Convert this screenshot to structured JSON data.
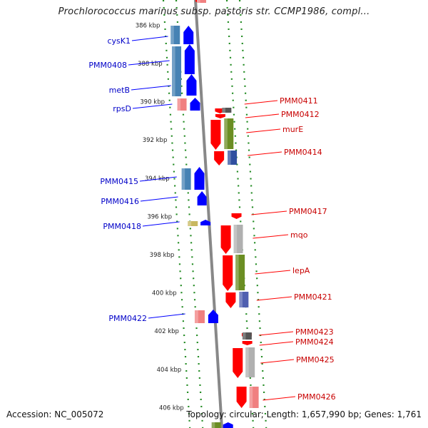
{
  "title": "Prochlorococcus marinus subsp. pastoris str. CCMP1986, compl...",
  "footer": {
    "accession": "Accession: NC_005072",
    "topology": "Topology: circular; Length: 1,657,990 bp; Genes: 1,761"
  },
  "colors": {
    "forward_arrow": "#0000ff",
    "reverse_arrow": "#ff0000",
    "cog_steelblue": "#4682b4",
    "cog_olive": "#6b8e23",
    "cog_pink": "#f08080",
    "cog_grey": "#b0b0b0",
    "cog_dark": "#555555",
    "cog_khaki": "#c8b860",
    "backbone": "#888888",
    "frame_dots": "#228b22"
  },
  "ticks": [
    "386 kbp",
    "388 kbp",
    "390 kbp",
    "392 kbp",
    "394 kbp",
    "396 kbp",
    "398 kbp",
    "400 kbp",
    "402 kbp",
    "404 kbp",
    "406 kbp"
  ],
  "left_genes": [
    {
      "name": "cysK1",
      "kbp": 385.9
    },
    {
      "name": "PMM0408",
      "kbp": 387.9
    },
    {
      "name": "metB",
      "kbp": 389.2
    },
    {
      "name": "rpsD",
      "kbp": 390.0
    },
    {
      "name": "PMM0415",
      "kbp": 394.0
    },
    {
      "name": "PMM0416",
      "kbp": 394.8
    },
    {
      "name": "PMM0418",
      "kbp": 396.1
    },
    {
      "name": "PMM0422",
      "kbp": 401.3
    }
  ],
  "right_genes": [
    {
      "name": "PMM0411",
      "kbp": 390.4
    },
    {
      "name": "PMM0412",
      "kbp": 390.8
    },
    {
      "name": "murE",
      "kbp": 391.6
    },
    {
      "name": "PMM0414",
      "kbp": 392.8
    },
    {
      "name": "PMM0417",
      "kbp": 395.8
    },
    {
      "name": "mqo",
      "kbp": 397.0
    },
    {
      "name": "lepA",
      "kbp": 398.8
    },
    {
      "name": "PMM0421",
      "kbp": 400.2
    },
    {
      "name": "PMM0423",
      "kbp": 402.2
    },
    {
      "name": "PMM0424",
      "kbp": 402.7
    },
    {
      "name": "PMM0425",
      "kbp": 403.6
    },
    {
      "name": "PMM0426",
      "kbp": 405.6
    }
  ]
}
